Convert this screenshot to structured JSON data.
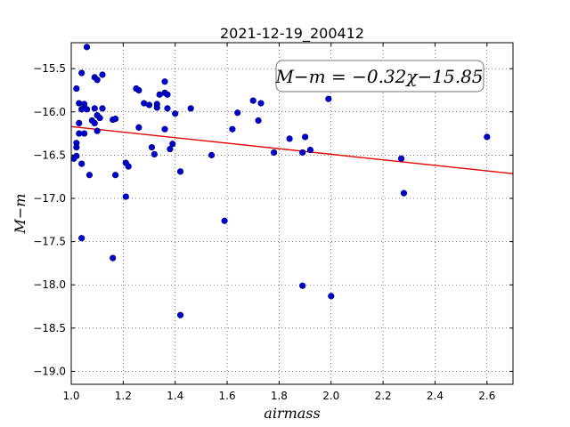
{
  "chart_data": {
    "type": "scatter",
    "title": "2021-12-19_200412",
    "xlabel": "airmass",
    "ylabel": "M−m",
    "xlim": [
      1.0,
      2.7
    ],
    "ylim": [
      -19.15,
      -15.2
    ],
    "y_inverted": true,
    "grid": true,
    "xticks": [
      1.0,
      1.2,
      1.4,
      1.6,
      1.8,
      2.0,
      2.2,
      2.4,
      2.6
    ],
    "xtick_labels": [
      "1.0",
      "1.2",
      "1.4",
      "1.6",
      "1.8",
      "2.0",
      "2.2",
      "2.4",
      "2.6"
    ],
    "yticks": [
      -15.5,
      -16.0,
      -16.5,
      -17.0,
      -17.5,
      -18.0,
      -18.5,
      -19.0
    ],
    "ytick_labels": [
      "−15.5",
      "−16.0",
      "−16.5",
      "−17.0",
      "−17.5",
      "−18.0",
      "−18.5",
      "−19.0"
    ],
    "annotation": "M−m = −0.32χ−15.85",
    "annotation_placement": "top-right",
    "fit_line": {
      "slope": -0.32,
      "intercept": -15.85,
      "color": "#e00000"
    },
    "point_color": "#0000cc",
    "series": [
      {
        "points": [
          [
            1.06,
            -15.25
          ],
          [
            1.04,
            -15.55
          ],
          [
            1.02,
            -15.73
          ],
          [
            1.09,
            -15.6
          ],
          [
            1.1,
            -15.63
          ],
          [
            1.12,
            -15.57
          ],
          [
            1.03,
            -15.9
          ],
          [
            1.05,
            -15.91
          ],
          [
            1.04,
            -15.97
          ],
          [
            1.06,
            -15.97
          ],
          [
            1.09,
            -15.96
          ],
          [
            1.12,
            -15.96
          ],
          [
            1.1,
            -16.04
          ],
          [
            1.11,
            -16.07
          ],
          [
            1.08,
            -16.1
          ],
          [
            1.09,
            -16.13
          ],
          [
            1.03,
            -16.13
          ],
          [
            1.03,
            -16.25
          ],
          [
            1.05,
            -16.25
          ],
          [
            1.1,
            -16.22
          ],
          [
            1.02,
            -16.36
          ],
          [
            1.02,
            -16.41
          ],
          [
            1.02,
            -16.51
          ],
          [
            1.01,
            -16.54
          ],
          [
            1.04,
            -16.6
          ],
          [
            1.07,
            -16.73
          ],
          [
            1.04,
            -17.46
          ],
          [
            1.16,
            -16.09
          ],
          [
            1.17,
            -16.08
          ],
          [
            1.17,
            -16.73
          ],
          [
            1.21,
            -16.59
          ],
          [
            1.22,
            -16.63
          ],
          [
            1.21,
            -16.98
          ],
          [
            1.16,
            -17.69
          ],
          [
            1.25,
            -15.73
          ],
          [
            1.26,
            -15.75
          ],
          [
            1.26,
            -16.18
          ],
          [
            1.28,
            -15.9
          ],
          [
            1.3,
            -15.92
          ],
          [
            1.33,
            -15.91
          ],
          [
            1.33,
            -15.95
          ],
          [
            1.34,
            -15.8
          ],
          [
            1.36,
            -15.65
          ],
          [
            1.36,
            -15.78
          ],
          [
            1.37,
            -15.8
          ],
          [
            1.37,
            -15.96
          ],
          [
            1.4,
            -16.02
          ],
          [
            1.31,
            -16.41
          ],
          [
            1.32,
            -16.49
          ],
          [
            1.36,
            -16.2
          ],
          [
            1.39,
            -16.37
          ],
          [
            1.38,
            -16.43
          ],
          [
            1.42,
            -16.69
          ],
          [
            1.46,
            -15.96
          ],
          [
            1.42,
            -18.35
          ],
          [
            1.54,
            -16.5
          ],
          [
            1.59,
            -17.26
          ],
          [
            1.62,
            -16.2
          ],
          [
            1.64,
            -16.01
          ],
          [
            1.7,
            -15.87
          ],
          [
            1.72,
            -16.1
          ],
          [
            1.73,
            -15.9
          ],
          [
            1.78,
            -16.47
          ],
          [
            1.84,
            -16.31
          ],
          [
            1.89,
            -16.47
          ],
          [
            1.9,
            -16.29
          ],
          [
            1.92,
            -16.44
          ],
          [
            1.89,
            -18.01
          ],
          [
            1.99,
            -15.85
          ],
          [
            2.0,
            -18.13
          ],
          [
            2.27,
            -16.54
          ],
          [
            2.28,
            -16.94
          ],
          [
            2.6,
            -16.29
          ]
        ]
      }
    ]
  }
}
